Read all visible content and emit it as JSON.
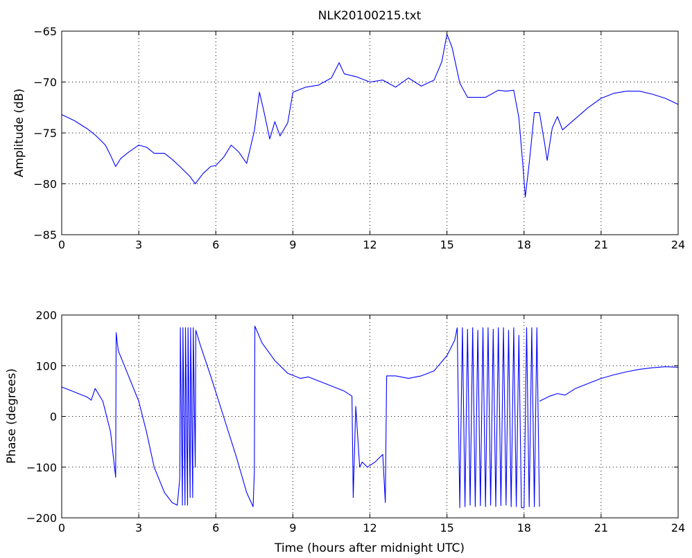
{
  "chart_data": [
    {
      "type": "line",
      "title": "NLK20100215.txt",
      "xlabel": "",
      "ylabel": "Amplitude (dB)",
      "xlim": [
        0,
        24
      ],
      "ylim": [
        -85,
        -65
      ],
      "xticks": [
        0,
        3,
        6,
        9,
        12,
        15,
        18,
        21,
        24
      ],
      "yticks": [
        -85,
        -80,
        -75,
        -70,
        -65
      ],
      "grid": true,
      "color": "#0000ff",
      "series": [
        {
          "x": [
            0,
            0.5,
            1.0,
            1.3,
            1.7,
            1.9,
            2.1,
            2.3,
            2.6,
            3.0,
            3.3,
            3.6,
            4.0,
            4.3,
            4.6,
            5.0,
            5.2,
            5.5,
            5.8,
            6.0,
            6.3,
            6.6,
            6.9,
            7.2,
            7.5,
            7.7,
            7.9,
            8.1,
            8.3,
            8.5,
            8.8,
            9.0,
            9.5,
            10.0,
            10.5,
            10.8,
            11.0,
            11.5,
            12.0,
            12.5,
            13.0,
            13.5,
            14.0,
            14.5,
            14.8,
            15.0,
            15.2,
            15.5,
            15.8,
            16.0,
            16.5,
            17.0,
            17.3,
            17.6,
            17.8,
            17.95,
            18.05,
            18.2,
            18.4,
            18.6,
            18.8,
            18.9,
            19.1,
            19.3,
            19.5,
            20.0,
            20.5,
            21.0,
            21.5,
            22.0,
            22.5,
            23.0,
            23.5,
            24.0
          ],
          "y": [
            -73.2,
            -73.8,
            -74.6,
            -75.2,
            -76.2,
            -77.2,
            -78.3,
            -77.5,
            -76.9,
            -76.2,
            -76.4,
            -77.0,
            -77.0,
            -77.6,
            -78.3,
            -79.3,
            -80.0,
            -79.0,
            -78.3,
            -78.2,
            -77.4,
            -76.2,
            -76.9,
            -78.0,
            -74.8,
            -71.0,
            -73.2,
            -75.6,
            -73.9,
            -75.3,
            -74.0,
            -71.0,
            -70.5,
            -70.3,
            -69.6,
            -68.1,
            -69.2,
            -69.5,
            -70.0,
            -69.8,
            -70.5,
            -69.6,
            -70.4,
            -69.8,
            -68.0,
            -65.3,
            -66.6,
            -70.1,
            -71.5,
            -71.5,
            -71.5,
            -70.8,
            -70.9,
            -70.8,
            -73.5,
            -78.0,
            -81.3,
            -78.0,
            -73.0,
            -73.0,
            -76.0,
            -77.7,
            -74.5,
            -73.4,
            -74.7,
            -73.6,
            -72.5,
            -71.6,
            -71.1,
            -70.9,
            -70.9,
            -71.2,
            -71.6,
            -72.2
          ]
        }
      ]
    },
    {
      "type": "line",
      "title": "",
      "xlabel": "Time (hours after midnight UTC)",
      "ylabel": "Phase (degrees)",
      "xlim": [
        0,
        24
      ],
      "ylim": [
        -200,
        200
      ],
      "xticks": [
        0,
        3,
        6,
        9,
        12,
        15,
        18,
        21,
        24
      ],
      "yticks": [
        -200,
        -100,
        0,
        100,
        200
      ],
      "grid": true,
      "color": "#0000ff",
      "series": [
        {
          "x": [
            0,
            0.5,
            1.0,
            1.15,
            1.3,
            1.6,
            1.9,
            2.1,
            2.12,
            2.2,
            2.6,
            3.0,
            3.3,
            3.6,
            4.0,
            4.3,
            4.5,
            4.6,
            4.62,
            4.7,
            4.72,
            4.8,
            4.82,
            4.9,
            4.92,
            5.0,
            5.02,
            5.1,
            5.12,
            5.2,
            5.22,
            5.4,
            5.8,
            6.3,
            6.8,
            7.2,
            7.45,
            7.5,
            7.52,
            7.8,
            8.3,
            8.8,
            9.3,
            9.6,
            10.0,
            10.5,
            11.0,
            11.3,
            11.35,
            11.45,
            11.6,
            11.7,
            11.9,
            12.2,
            12.5,
            12.6,
            12.65,
            13.0,
            13.5,
            14.0,
            14.5,
            15.0,
            15.3,
            15.4
          ],
          "y": [
            58,
            48,
            38,
            32,
            55,
            30,
            -30,
            -120,
            165,
            130,
            80,
            30,
            -30,
            -100,
            -150,
            -170,
            -175,
            -120,
            175,
            -175,
            175,
            -175,
            175,
            -175,
            175,
            -160,
            175,
            -160,
            175,
            -100,
            170,
            140,
            80,
            0,
            -80,
            -150,
            -178,
            -110,
            178,
            145,
            110,
            85,
            75,
            78,
            70,
            60,
            50,
            40,
            -160,
            20,
            -100,
            -90,
            -100,
            -90,
            -75,
            -170,
            80,
            80,
            75,
            80,
            90,
            120,
            150,
            175
          ]
        },
        {
          "x": [
            15.4,
            15.5,
            15.6,
            15.7,
            15.8,
            15.9,
            16.0,
            16.1,
            16.2,
            16.3,
            16.4,
            16.5,
            16.6,
            16.7,
            16.8,
            16.9,
            17.0,
            17.1,
            17.2,
            17.3,
            17.4,
            17.5,
            17.6,
            17.7,
            17.8,
            17.9,
            18.0,
            18.1,
            18.2,
            18.3,
            18.4,
            18.5,
            18.6
          ],
          "y": [
            175,
            -180,
            175,
            -178,
            172,
            -175,
            175,
            -178,
            170,
            -176,
            175,
            -178,
            175,
            -175,
            172,
            -178,
            175,
            -176,
            175,
            -175,
            170,
            -178,
            175,
            -178,
            160,
            -180,
            -180,
            175,
            -178,
            175,
            -178,
            175,
            -178
          ]
        },
        {
          "x": [
            18.6,
            18.8,
            19.0,
            19.3,
            19.6,
            20.0,
            20.5,
            21.0,
            21.5,
            22.0,
            22.5,
            23.0,
            23.5,
            24.0
          ],
          "y": [
            30,
            35,
            40,
            45,
            42,
            55,
            65,
            75,
            82,
            88,
            93,
            96,
            98,
            97
          ]
        }
      ]
    }
  ]
}
